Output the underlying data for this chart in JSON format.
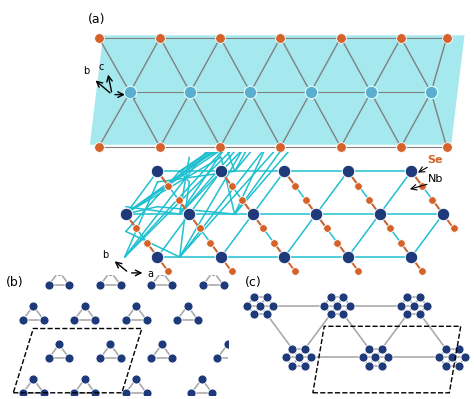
{
  "fig_width": 4.74,
  "fig_height": 3.99,
  "dpi": 100,
  "bg_color": "#ffffff",
  "se_color": "#d4622a",
  "nb_color_dark": "#1e3a7a",
  "nb_color_light": "#5aaed0",
  "bond_gray": "#808080",
  "cyan_color": "#20c0d0",
  "slab_fill": "#20c8d8",
  "slab_alpha": 0.4,
  "panel_a": "(a)",
  "panel_b": "(b)",
  "panel_c": "(c)",
  "se_label": "Se",
  "nb_label": "Nb"
}
